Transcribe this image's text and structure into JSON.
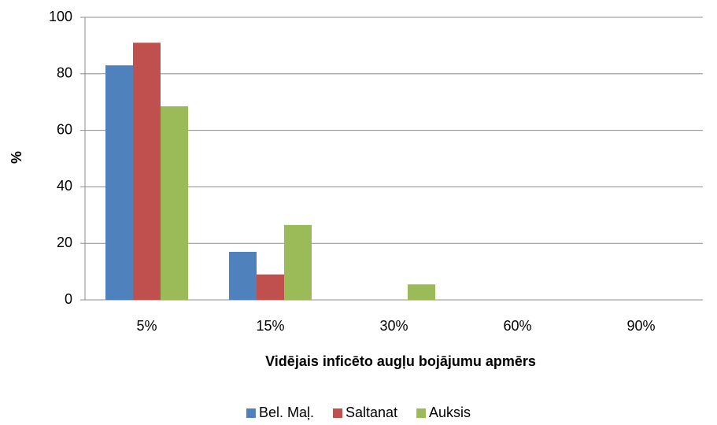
{
  "chart_data": {
    "type": "bar",
    "categories": [
      "5%",
      "15%",
      "30%",
      "60%",
      "90%"
    ],
    "series": [
      {
        "name": "Bel. Maļ.",
        "color": "#4f81bd",
        "values": [
          83,
          17,
          0,
          0,
          0
        ]
      },
      {
        "name": "Saltanat",
        "color": "#c0504d",
        "values": [
          91,
          9,
          0,
          0,
          0
        ]
      },
      {
        "name": "Auksis",
        "color": "#9bbb59",
        "values": [
          68.5,
          26.5,
          5.5,
          0,
          0
        ]
      }
    ],
    "x_label": "Vidējais inficēto augļu bojājumu apmērs",
    "y_label": "%",
    "ylim": [
      0,
      100
    ],
    "yticks": [
      0,
      20,
      40,
      60,
      80,
      100
    ],
    "grid": true,
    "legend": "bottom"
  }
}
